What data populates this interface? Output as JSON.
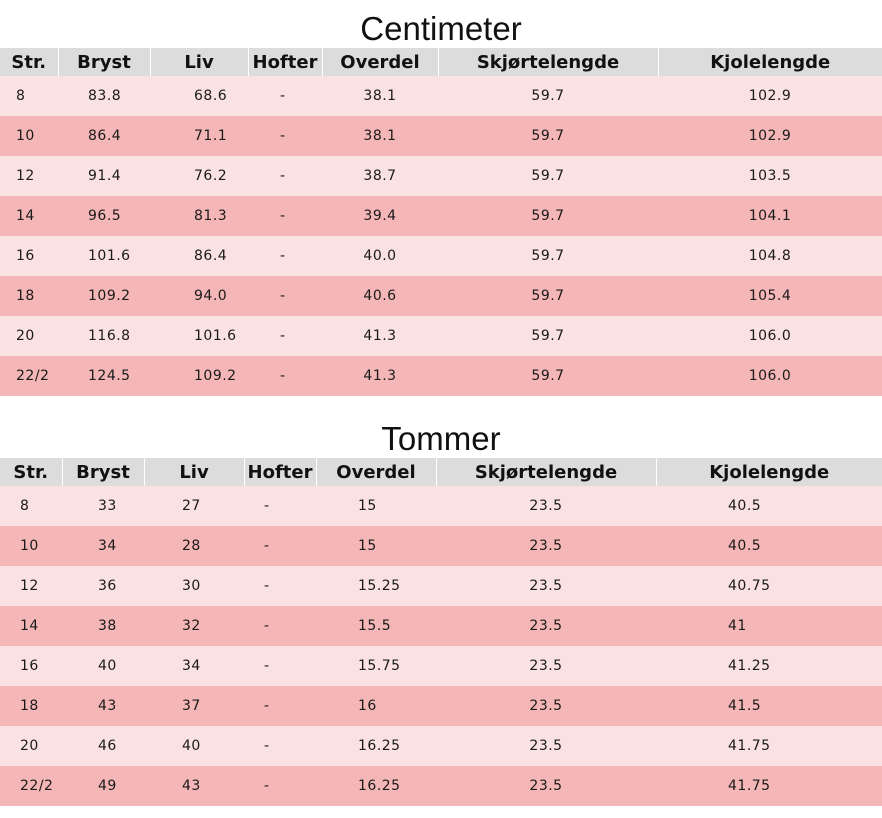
{
  "cm": {
    "title": "Centimeter",
    "headers": [
      "Str.",
      "Bryst",
      "Liv",
      "Hofter",
      "Overdel",
      "Skjørtelengde",
      "Kjolelengde"
    ],
    "rows": [
      [
        "8",
        "83.8",
        "68.6",
        "-",
        "38.1",
        "59.7",
        "102.9"
      ],
      [
        "10",
        "86.4",
        "71.1",
        "-",
        "38.1",
        "59.7",
        "102.9"
      ],
      [
        "12",
        "91.4",
        "76.2",
        "-",
        "38.7",
        "59.7",
        "103.5"
      ],
      [
        "14",
        "96.5",
        "81.3",
        "-",
        "39.4",
        "59.7",
        "104.1"
      ],
      [
        "16",
        "101.6",
        "86.4",
        "-",
        "40.0",
        "59.7",
        "104.8"
      ],
      [
        "18",
        "109.2",
        "94.0",
        "-",
        "40.6",
        "59.7",
        "105.4"
      ],
      [
        "20",
        "116.8",
        "101.6",
        "-",
        "41.3",
        "59.7",
        "106.0"
      ],
      [
        "22/2",
        "124.5",
        "109.2",
        "-",
        "41.3",
        "59.7",
        "106.0"
      ]
    ]
  },
  "inch": {
    "title": "Tommer",
    "headers": [
      "Str.",
      "Bryst",
      "Liv",
      "Hofter",
      "Overdel",
      "Skjørtelengde",
      "Kjolelengde"
    ],
    "rows": [
      [
        "8",
        "33",
        "27",
        "-",
        "15",
        "23.5",
        "40.5"
      ],
      [
        "10",
        "34",
        "28",
        "-",
        "15",
        "23.5",
        "40.5"
      ],
      [
        "12",
        "36",
        "30",
        "-",
        "15.25",
        "23.5",
        "40.75"
      ],
      [
        "14",
        "38",
        "32",
        "-",
        "15.5",
        "23.5",
        "41"
      ],
      [
        "16",
        "40",
        "34",
        "-",
        "15.75",
        "23.5",
        "41.25"
      ],
      [
        "18",
        "43",
        "37",
        "-",
        "16",
        "23.5",
        "41.5"
      ],
      [
        "20",
        "46",
        "40",
        "-",
        "16.25",
        "23.5",
        "41.75"
      ],
      [
        "22/2",
        "49",
        "43",
        "-",
        "16.25",
        "23.5",
        "41.75"
      ]
    ]
  }
}
